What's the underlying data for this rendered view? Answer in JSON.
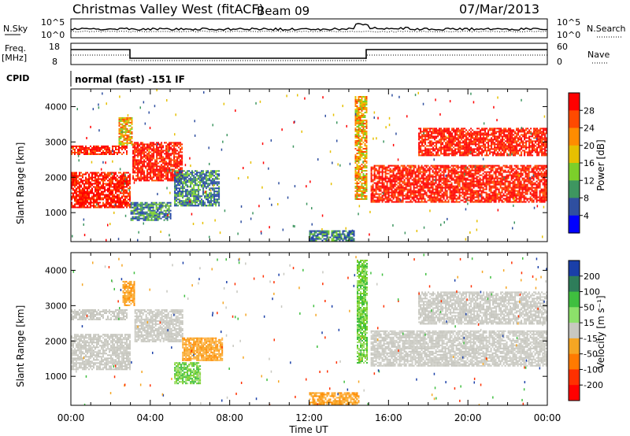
{
  "header": {
    "station": "Christmas Valley West (fitACF)",
    "beam": "Beam 09",
    "date": "07/Mar/2013"
  },
  "panels": {
    "nsky": {
      "label": "N.Sky",
      "ticks": [
        "10^5",
        "10^0"
      ],
      "right_label": "N.Search",
      "right_ticks": [
        "10^5",
        "10^0"
      ]
    },
    "freq": {
      "label_line1": "Freq.",
      "label_line2": "[MHz]",
      "ticks": [
        "18",
        "8"
      ],
      "right_label": "Nave",
      "right_ticks": [
        "60",
        "0"
      ]
    },
    "cpid": {
      "label": "CPID",
      "text": "normal (fast) -151 IF"
    }
  },
  "chart_data": [
    {
      "type": "heatmap",
      "name": "power",
      "ylabel": "Slant Range [km]",
      "xlabel": "",
      "x_range_hours": [
        0,
        24
      ],
      "y_range_km": [
        180,
        4500
      ],
      "y_ticks": [
        1000,
        2000,
        3000,
        4000
      ],
      "x_tick_labels": [
        "00:00",
        "04:00",
        "08:00",
        "12:00",
        "16:00",
        "20:00",
        "00:00"
      ],
      "colorbar": {
        "label": "Power [dB]",
        "ticks": [
          "28",
          "24",
          "20",
          "16",
          "12",
          "8",
          "4"
        ],
        "colors": [
          "#ff0000",
          "#ff4a00",
          "#ff8c00",
          "#e6c000",
          "#7ccf2a",
          "#3e9660",
          "#2f4fa0",
          "#0000ff"
        ]
      },
      "regions": [
        {
          "t0": 0.0,
          "t1": 3.0,
          "r0": 1150,
          "r1": 2150,
          "level": "high"
        },
        {
          "t0": 0.0,
          "t1": 2.8,
          "r0": 2650,
          "r1": 2900,
          "level": "high"
        },
        {
          "t0": 2.4,
          "t1": 3.1,
          "r0": 2900,
          "r1": 3700,
          "level": "mid"
        },
        {
          "t0": 3.1,
          "t1": 5.6,
          "r0": 1900,
          "r1": 3000,
          "level": "high"
        },
        {
          "t0": 5.2,
          "t1": 7.5,
          "r0": 1200,
          "r1": 2200,
          "level": "low"
        },
        {
          "t0": 3.0,
          "t1": 5.0,
          "r0": 800,
          "r1": 1300,
          "level": "low"
        },
        {
          "t0": 12.0,
          "t1": 14.3,
          "r0": 200,
          "r1": 500,
          "level": "low"
        },
        {
          "t0": 14.3,
          "t1": 14.9,
          "r0": 1400,
          "r1": 4300,
          "level": "mid"
        },
        {
          "t0": 15.1,
          "t1": 24.0,
          "r0": 1300,
          "r1": 2350,
          "level": "high"
        },
        {
          "t0": 17.5,
          "t1": 24.0,
          "r0": 2600,
          "r1": 3400,
          "level": "high"
        }
      ]
    },
    {
      "type": "heatmap",
      "name": "velocity",
      "ylabel": "Slant Range [km]",
      "xlabel": "Time UT",
      "x_range_hours": [
        0,
        24
      ],
      "y_range_km": [
        180,
        4500
      ],
      "y_ticks": [
        1000,
        2000,
        3000,
        4000
      ],
      "x_tick_labels": [
        "00:00",
        "04:00",
        "08:00",
        "12:00",
        "16:00",
        "20:00",
        "00:00"
      ],
      "colorbar": {
        "label": "Velocity [m s⁻¹]",
        "ticks": [
          "200",
          "100",
          "50",
          "15",
          "-15",
          "-50",
          "-100",
          "-200"
        ],
        "colors": [
          "#1a3fa8",
          "#2e7d5a",
          "#3fbf3f",
          "#8ce06a",
          "#c8c8c0",
          "#f5a623",
          "#ff7a00",
          "#ff3000",
          "#ff0000"
        ]
      },
      "regions": [
        {
          "t0": 0.0,
          "t1": 3.0,
          "r0": 1200,
          "r1": 2200,
          "level": "gray"
        },
        {
          "t0": 0.0,
          "t1": 2.8,
          "r0": 2600,
          "r1": 2900,
          "level": "gray"
        },
        {
          "t0": 3.2,
          "t1": 5.6,
          "r0": 2000,
          "r1": 2900,
          "level": "gray"
        },
        {
          "t0": 2.6,
          "t1": 3.2,
          "r0": 3000,
          "r1": 3700,
          "level": "orange"
        },
        {
          "t0": 5.6,
          "t1": 7.6,
          "r0": 1450,
          "r1": 2100,
          "level": "orange"
        },
        {
          "t0": 5.2,
          "t1": 6.5,
          "r0": 800,
          "r1": 1400,
          "level": "green"
        },
        {
          "t0": 12.0,
          "t1": 14.5,
          "r0": 200,
          "r1": 550,
          "level": "orange"
        },
        {
          "t0": 14.4,
          "t1": 14.9,
          "r0": 1400,
          "r1": 4300,
          "level": "green"
        },
        {
          "t0": 15.1,
          "t1": 24.0,
          "r0": 1300,
          "r1": 2300,
          "level": "gray"
        },
        {
          "t0": 17.5,
          "t1": 24.0,
          "r0": 2500,
          "r1": 3400,
          "level": "gray"
        }
      ]
    }
  ]
}
